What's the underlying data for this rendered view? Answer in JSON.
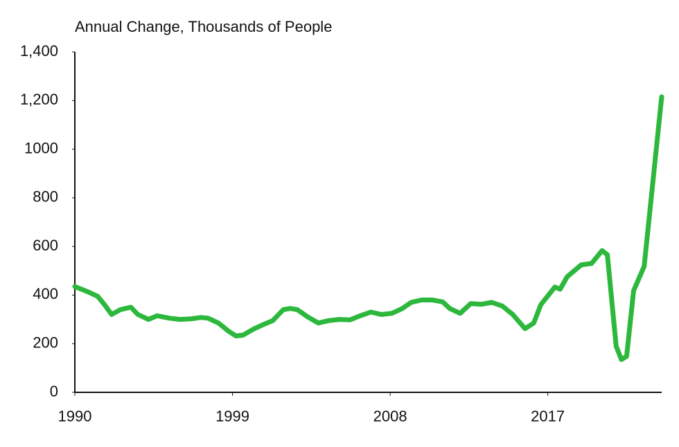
{
  "chart_data": {
    "type": "line",
    "title": "Annual Change, Thousands of People",
    "x": [
      1990,
      1990.7,
      1991.3,
      1991.7,
      1992.1,
      1992.6,
      1993.2,
      1993.6,
      1994.2,
      1994.7,
      1995.4,
      1996.0,
      1996.6,
      1997.2,
      1997.6,
      1998.2,
      1998.8,
      1999.2,
      1999.6,
      2000.2,
      2000.8,
      2001.3,
      2001.9,
      2002.3,
      2002.7,
      2003.3,
      2003.9,
      2004.5,
      2005.1,
      2005.7,
      2006.3,
      2006.9,
      2007.5,
      2008.1,
      2008.7,
      2009.2,
      2009.8,
      2010.4,
      2011.0,
      2011.4,
      2012.0,
      2012.6,
      2013.2,
      2013.8,
      2014.4,
      2015.0,
      2015.7,
      2016.2,
      2016.6,
      2017.4,
      2017.7,
      2018.1,
      2018.9,
      2019.5,
      2020.1,
      2020.4,
      2020.9,
      2021.2,
      2021.5,
      2021.9,
      2022.5,
      2023.5
    ],
    "series": [
      {
        "name": "Annual Change",
        "color": "#2db83d",
        "values": [
          435,
          415,
          395,
          360,
          320,
          340,
          350,
          320,
          300,
          315,
          305,
          300,
          302,
          308,
          305,
          285,
          250,
          232,
          235,
          260,
          280,
          295,
          340,
          345,
          340,
          310,
          285,
          295,
          300,
          298,
          315,
          330,
          320,
          325,
          345,
          370,
          380,
          380,
          372,
          345,
          325,
          365,
          362,
          370,
          355,
          320,
          262,
          285,
          360,
          433,
          424,
          475,
          524,
          530,
          583,
          566,
          190,
          135,
          148,
          418,
          518,
          1215
        ]
      }
    ],
    "xlim": [
      1990,
      2023.5
    ],
    "xticks": [
      1990,
      1999,
      2008,
      2017
    ],
    "ylim": [
      0,
      1400
    ],
    "yticks": [
      0,
      200,
      400,
      600,
      800,
      1000,
      {
        "value": 1200,
        "label": "1,200"
      },
      {
        "value": 1400,
        "label": "1,400"
      }
    ]
  }
}
